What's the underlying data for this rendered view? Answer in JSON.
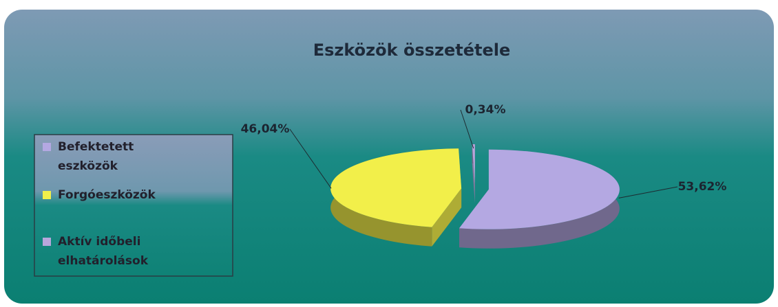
{
  "chart_data": {
    "type": "pie",
    "title": "Eszközök összetétele",
    "series": [
      {
        "name": "Befektetett eszközök",
        "color": "#b4a8e2",
        "values": [
          53.62
        ],
        "value_labels": [
          "53,62%"
        ]
      },
      {
        "name": "Forgóeszközök",
        "color": "#f2ef4a",
        "values": [
          46.04
        ],
        "value_labels": [
          "46,04%"
        ]
      },
      {
        "name": "Aktív időbeli elhatárolások",
        "color": "#b8a6dc",
        "values": [
          0.34
        ],
        "value_labels": [
          "0,34%"
        ]
      }
    ],
    "legend": "left"
  }
}
